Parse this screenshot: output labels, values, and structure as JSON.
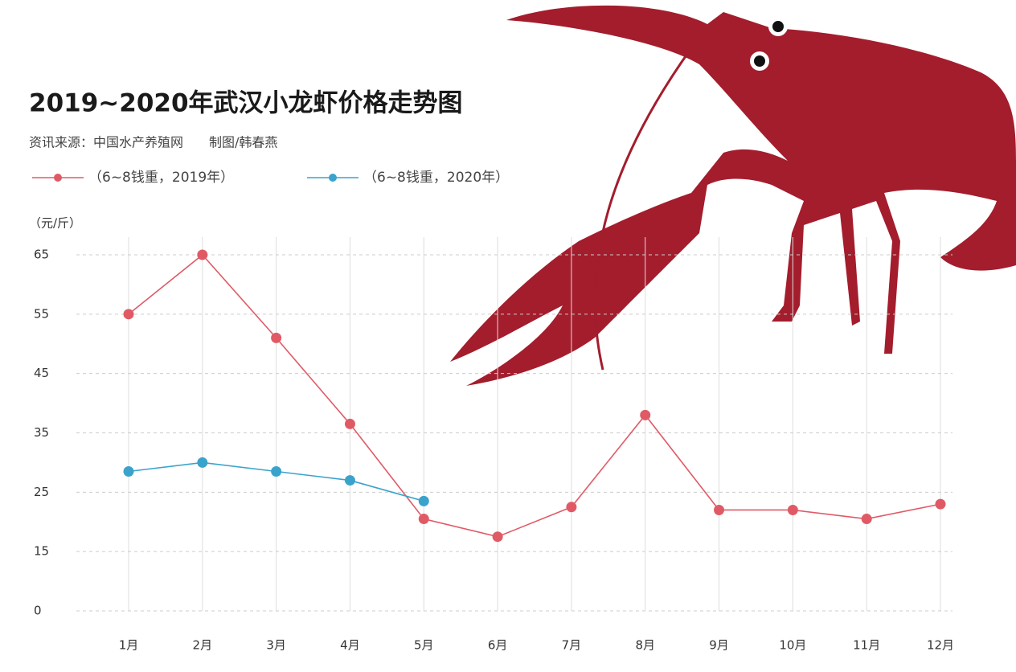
{
  "chart_data": {
    "type": "line",
    "title": "2019~2020年武汉小龙虾价格走势图",
    "subtitle": "资讯来源：中国水产养殖网　　制图/韩春燕",
    "y_label": "（元/斤）",
    "categories": [
      "1月",
      "2月",
      "3月",
      "4月",
      "5月",
      "6月",
      "7月",
      "8月",
      "9月",
      "10月",
      "11月",
      "12月"
    ],
    "series": [
      {
        "name": "（6~8钱重，2019年）",
        "color": "#e05a66",
        "values": [
          55,
          65,
          51,
          36.5,
          20.5,
          17.5,
          22.5,
          38,
          22,
          22,
          20.5,
          23
        ]
      },
      {
        "name": "（6~8钱重，2020年）",
        "color": "#3aa3cc",
        "values": [
          28.5,
          30,
          28.5,
          27,
          23.5,
          null,
          null,
          null,
          null,
          null,
          null,
          null
        ]
      }
    ],
    "ylim": [
      0,
      65
    ],
    "yticks": [
      0,
      15,
      25,
      35,
      45,
      55,
      65
    ],
    "grid": true,
    "legend": "top-left"
  }
}
